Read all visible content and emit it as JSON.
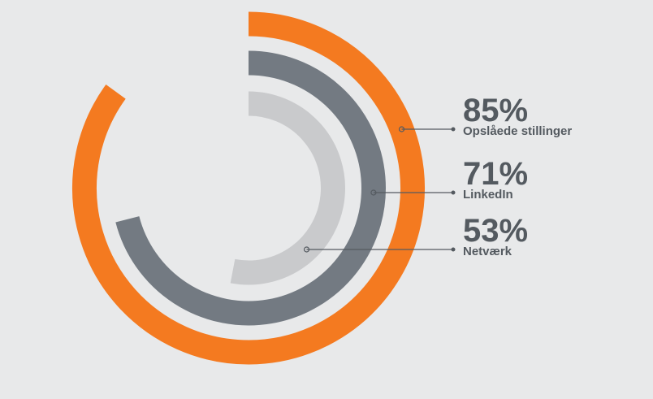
{
  "chart_data": {
    "type": "radial_bar",
    "categories": [
      "Opslåede stillinger",
      "LinkedIn",
      "Netværk"
    ],
    "values": [
      85,
      71,
      53
    ],
    "value_labels": [
      "85%",
      "71%",
      "53%"
    ],
    "colors": [
      "#f47a20",
      "#737a82",
      "#c9cacc"
    ],
    "ylim": [
      0,
      100
    ]
  }
}
